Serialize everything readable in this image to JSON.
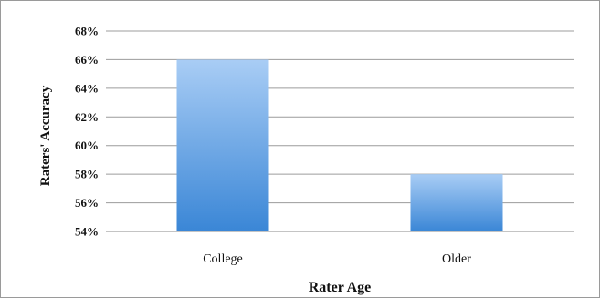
{
  "chart_data": {
    "type": "bar",
    "categories": [
      "College",
      "Older"
    ],
    "values": [
      66,
      58
    ],
    "xlabel": "Rater Age",
    "ylabel": "Raters' Accuracy",
    "ylim": [
      54,
      68
    ],
    "y_ticks": [
      "54%",
      "56%",
      "58%",
      "60%",
      "62%",
      "64%",
      "66%",
      "68%"
    ],
    "grid": true,
    "bar_color_top": "#a9cdf5",
    "bar_color_bottom": "#3a86d6"
  }
}
